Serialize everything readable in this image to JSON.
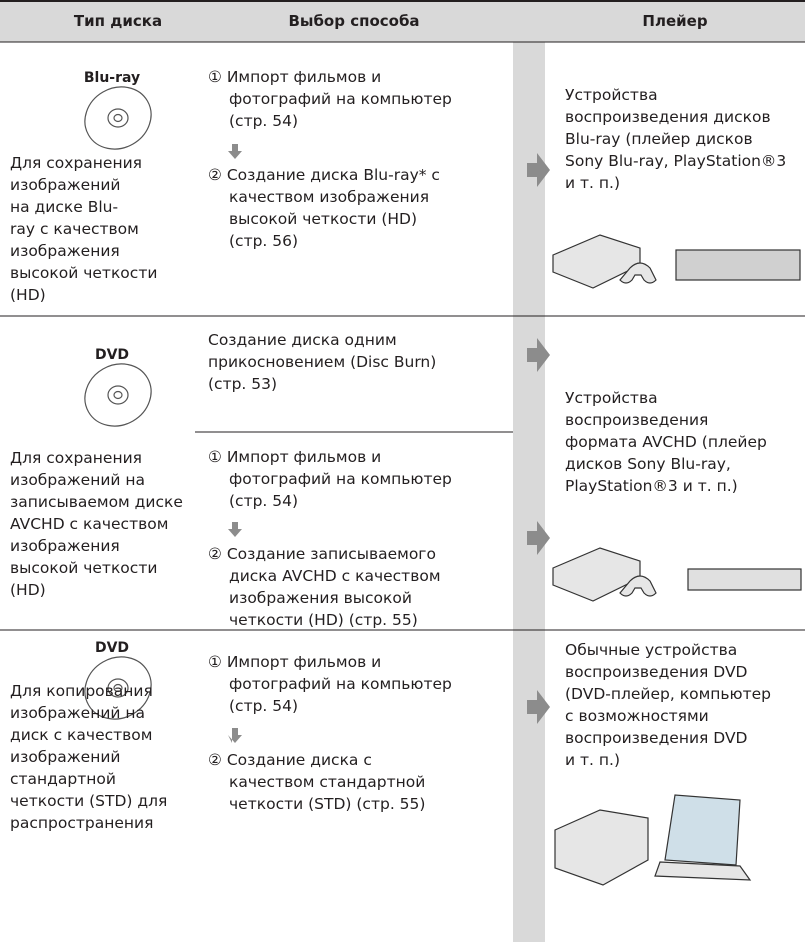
{
  "header": {
    "columns": [
      "Тип диска",
      "Выбор способа",
      "Плейер"
    ]
  },
  "rows": [
    {
      "disc_label": "Blu-ray",
      "disc_description": [
        "Для сохранения",
        "изображений",
        "на диске Blu-",
        "ray с качеством",
        "изображения",
        "высокой четкости",
        "(HD)"
      ],
      "methods": [
        [
          [
            "① Импорт фильмов и",
            "фотографий на компьютер",
            "(стр. 54)"
          ],
          [
            "② Создание диска Blu-ray* с",
            "качеством изображения",
            "высокой четкости (HD)",
            "(стр. 56)"
          ]
        ]
      ],
      "player": [
        "Устройства",
        "воспроизведения дисков",
        "Blu-ray (плейер дисков",
        "Sony Blu-ray, PlayStation®3",
        "и т. п.)"
      ]
    },
    {
      "disc_label": "DVD",
      "disc_description": [
        "Для сохранения",
        "изображений на",
        "записываемом диске",
        "AVCHD с качеством",
        "изображения",
        "высокой четкости",
        "(HD)"
      ],
      "methods": [
        [
          [
            "Создание диска одним",
            "прикосновением (Disc Burn)",
            "(стр. 53)"
          ]
        ],
        [
          [
            "① Импорт фильмов и",
            "фотографий на компьютер",
            "(стр. 54)"
          ],
          [
            "② Создание записываемого",
            "диска AVCHD с качеством",
            "изображения высокой",
            "четкости (HD) (стр. 55)"
          ]
        ]
      ],
      "player": [
        "Устройства",
        "воспроизведения",
        "формата AVCHD (плейер",
        "дисков Sony Blu-ray,",
        "PlayStation®3 и т. п.)"
      ]
    },
    {
      "disc_label": "DVD",
      "disc_description": [
        "Для копирования",
        "изображений на",
        "диск с качеством",
        "изображений",
        "стандартной",
        "четкости (STD) для",
        "распространения"
      ],
      "methods": [
        [
          [
            "① Импорт фильмов и",
            "фотографий на компьютер",
            "(стр. 54)"
          ],
          [
            "② Создание диска с",
            "качеством стандартной",
            "четкости (STD) (стр. 55)"
          ]
        ]
      ],
      "player": [
        "Обычные устройства",
        "воспроизведения DVD",
        "(DVD-плейер, компьютер",
        "с возможностями",
        "воспроизведения DVD",
        "и т. п.)"
      ]
    }
  ]
}
